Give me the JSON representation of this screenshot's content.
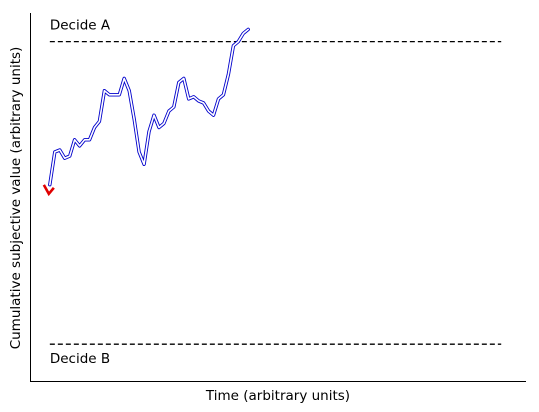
{
  "chart_data": {
    "type": "line",
    "title": "",
    "xlabel": "Time (arbitrary units)",
    "ylabel": "Cumulative subjective value (arbitrary units)",
    "xlim": [
      0,
      100
    ],
    "ylim": [
      -45,
      45
    ],
    "xticks": [],
    "yticks": [],
    "grid": false,
    "legend": "none",
    "thresholds": [
      {
        "label": "Decide A",
        "y": 38,
        "x_range": [
          4,
          95
        ]
      },
      {
        "label": "Decide B",
        "y": -36,
        "x_range": [
          4,
          95
        ]
      }
    ],
    "series": [
      {
        "color": "#0000cc",
        "x": [
          4,
          5,
          6,
          7,
          8,
          9,
          10,
          11,
          12,
          13,
          14,
          15,
          16,
          17,
          18,
          19,
          20,
          21,
          22,
          23,
          24,
          25,
          26,
          27,
          28,
          29,
          30,
          31,
          32,
          33,
          34,
          35,
          36,
          37,
          38,
          39,
          40,
          41,
          42,
          43,
          44
        ],
        "values": [
          3,
          11,
          11.5,
          9.5,
          10,
          14,
          12.5,
          14,
          14,
          17,
          18.5,
          26,
          25,
          25,
          25,
          29,
          26,
          19,
          11,
          8,
          16,
          20,
          17,
          18,
          21,
          22,
          28,
          29,
          24,
          24.5,
          23.5,
          23,
          21,
          20,
          24,
          25,
          30,
          37,
          38,
          40,
          41
        ]
      }
    ],
    "start_marker": {
      "x": 4,
      "y": 2,
      "color": "#e00000"
    }
  }
}
